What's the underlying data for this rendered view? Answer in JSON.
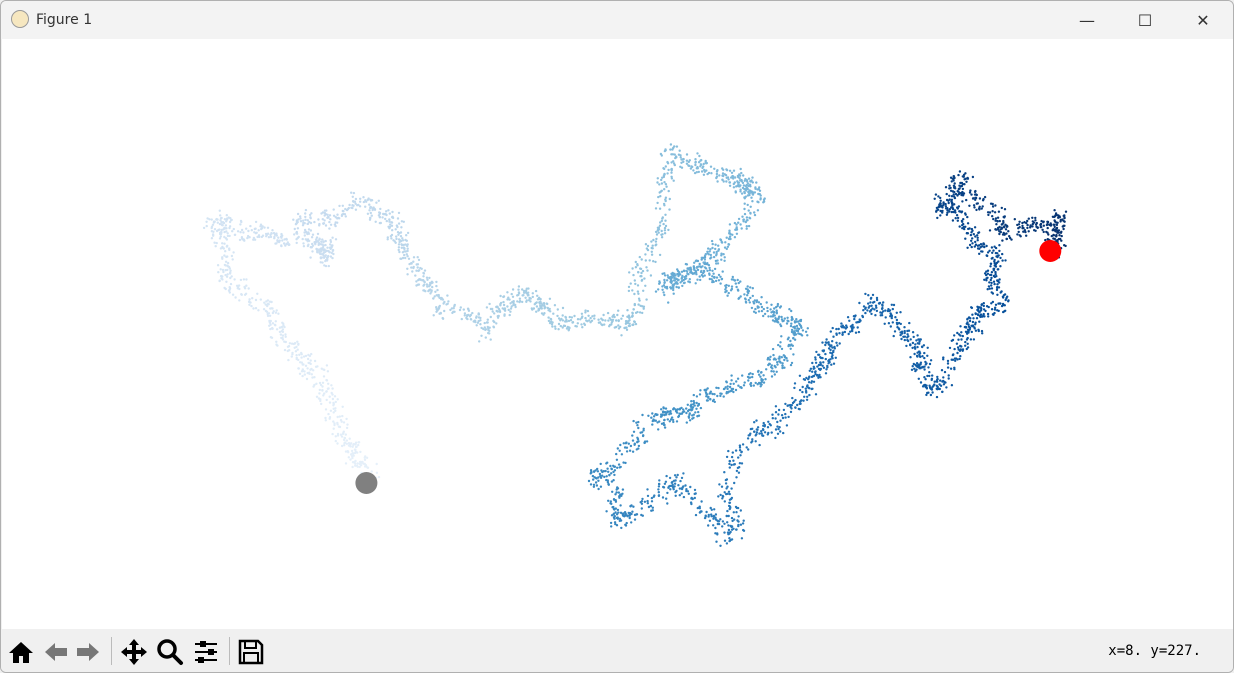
{
  "window": {
    "title": "Figure 1",
    "controls": [
      "minimize",
      "maximize",
      "close"
    ]
  },
  "toolbar": {
    "buttons": [
      "home-icon",
      "back-icon",
      "forward-icon",
      "pan-icon",
      "zoom-icon",
      "configure-subplots-icon",
      "save-icon"
    ],
    "coordinates": "x=8.  y=227."
  },
  "chart_data": {
    "type": "scatter",
    "title": "",
    "axes_visible": false,
    "grid": false,
    "colormap": "Blues",
    "colormap_stops": [
      "#f7fbff",
      "#deebf7",
      "#c6dbef",
      "#9ecae1",
      "#6baed6",
      "#4292c6",
      "#2171b5",
      "#08519c",
      "#08306b"
    ],
    "xlim": [
      -365,
      869
    ],
    "ylim": [
      -146,
      444
    ],
    "path_waypoints": [
      [
        0,
        0
      ],
      [
        -25,
        42
      ],
      [
        -45,
        102
      ],
      [
        -85,
        152
      ],
      [
        -135,
        202
      ],
      [
        -155,
        262
      ],
      [
        -95,
        252
      ],
      [
        -35,
        222
      ],
      [
        -65,
        262
      ],
      [
        -5,
        282
      ],
      [
        35,
        242
      ],
      [
        65,
        192
      ],
      [
        115,
        152
      ],
      [
        155,
        192
      ],
      [
        195,
        162
      ],
      [
        255,
        152
      ],
      [
        285,
        232
      ],
      [
        305,
        332
      ],
      [
        365,
        302
      ],
      [
        395,
        292
      ],
      [
        355,
        232
      ],
      [
        295,
        192
      ],
      [
        335,
        222
      ],
      [
        395,
        182
      ],
      [
        435,
        152
      ],
      [
        395,
        102
      ],
      [
        335,
        82
      ],
      [
        295,
        62
      ],
      [
        235,
        12
      ],
      [
        255,
        -38
      ],
      [
        315,
        2
      ],
      [
        365,
        -48
      ],
      [
        375,
        32
      ],
      [
        435,
        82
      ],
      [
        465,
        132
      ],
      [
        505,
        182
      ],
      [
        545,
        142
      ],
      [
        565,
        92
      ],
      [
        605,
        152
      ],
      [
        635,
        182
      ],
      [
        625,
        232
      ],
      [
        575,
        272
      ],
      [
        595,
        302
      ],
      [
        635,
        252
      ],
      [
        695,
        262
      ],
      [
        685,
        232
      ]
    ],
    "start_point": {
      "x": 0,
      "y": 0,
      "color": "#808080"
    },
    "end_point": {
      "x": 685,
      "y": 232,
      "color": "#ff0000"
    }
  }
}
